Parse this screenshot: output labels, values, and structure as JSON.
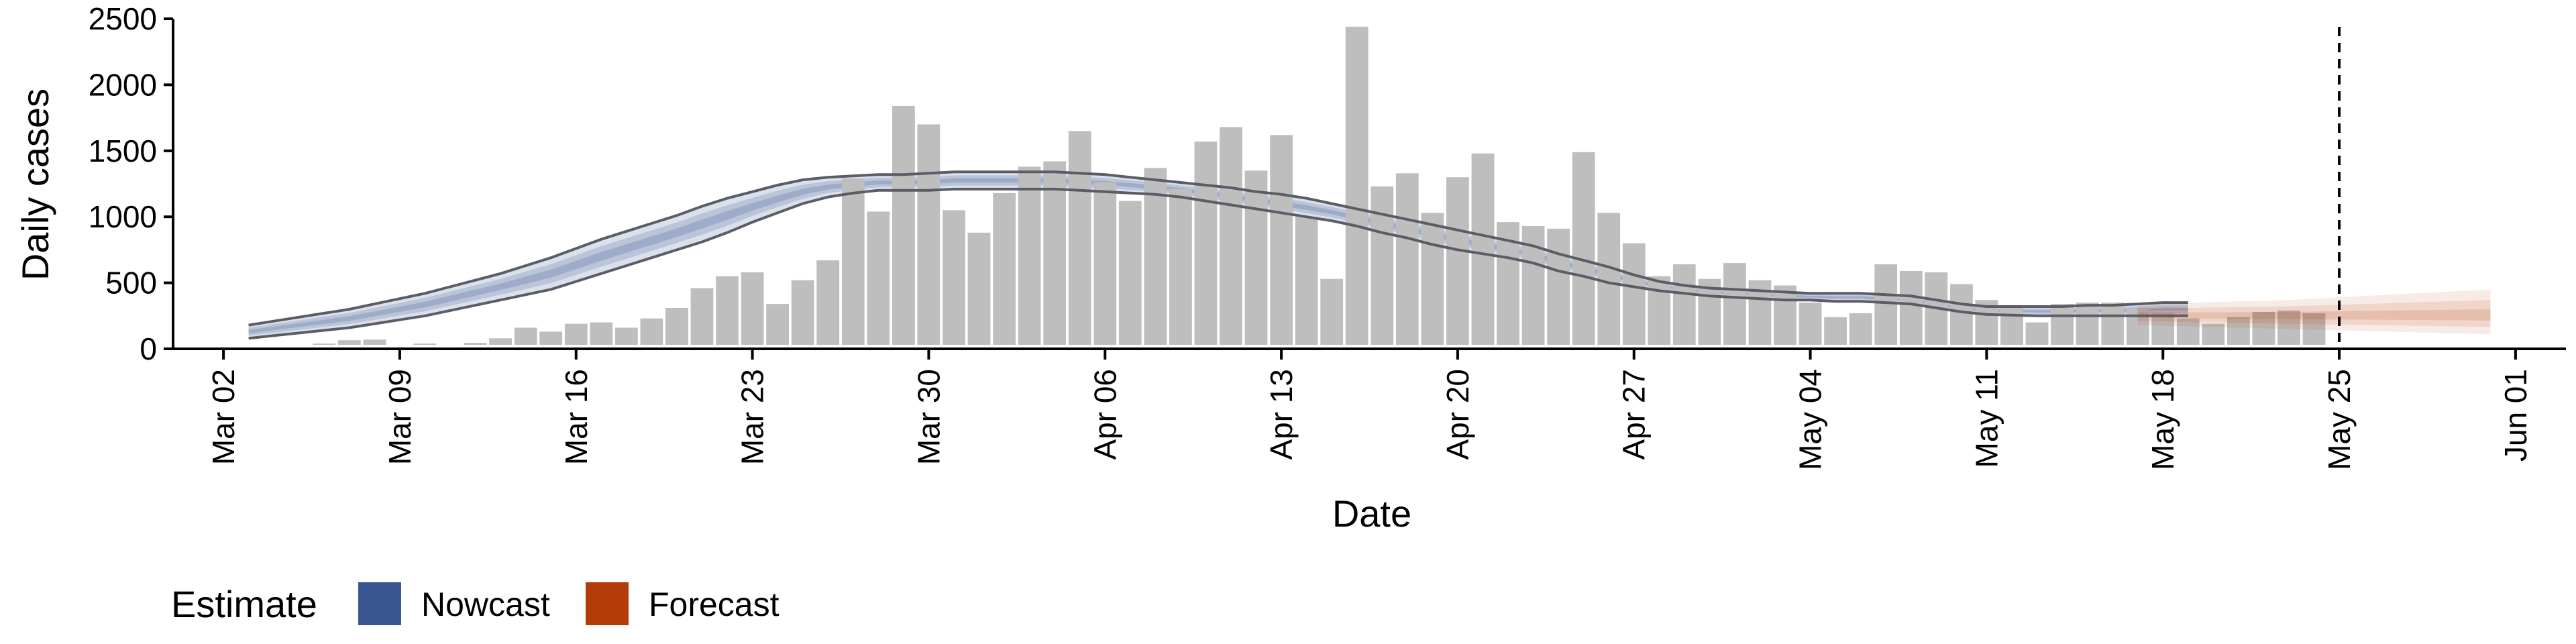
{
  "chart_data": {
    "type": "bar",
    "xlabel": "Date",
    "ylabel": "Daily cases",
    "ylim": [
      0,
      2500
    ],
    "yticks": [
      0,
      500,
      1000,
      1500,
      2000,
      2500
    ],
    "xlim": [
      "2020-02-29",
      "2020-06-03"
    ],
    "xticks": [
      {
        "date": "2020-03-02",
        "label": "Mar 02"
      },
      {
        "date": "2020-03-09",
        "label": "Mar 09"
      },
      {
        "date": "2020-03-16",
        "label": "Mar 16"
      },
      {
        "date": "2020-03-23",
        "label": "Mar 23"
      },
      {
        "date": "2020-03-30",
        "label": "Mar 30"
      },
      {
        "date": "2020-04-06",
        "label": "Apr 06"
      },
      {
        "date": "2020-04-13",
        "label": "Apr 13"
      },
      {
        "date": "2020-04-20",
        "label": "Apr 20"
      },
      {
        "date": "2020-04-27",
        "label": "Apr 27"
      },
      {
        "date": "2020-05-04",
        "label": "May 04"
      },
      {
        "date": "2020-05-11",
        "label": "May 11"
      },
      {
        "date": "2020-05-18",
        "label": "May 18"
      },
      {
        "date": "2020-05-25",
        "label": "May 25"
      },
      {
        "date": "2020-06-01",
        "label": "Jun 01"
      }
    ],
    "bar_color": "#bebebe",
    "bars": {
      "start": "2020-03-03",
      "values": [
        5,
        10,
        20,
        40,
        65,
        70,
        30,
        40,
        30,
        45,
        80,
        160,
        130,
        190,
        200,
        160,
        230,
        310,
        460,
        550,
        580,
        340,
        520,
        670,
        1290,
        1040,
        1840,
        1700,
        1050,
        880,
        1180,
        1380,
        1420,
        1650,
        1260,
        1120,
        1370,
        1210,
        1570,
        1680,
        1350,
        1620,
        1000,
        530,
        2440,
        1230,
        1330,
        1030,
        1300,
        1480,
        960,
        930,
        910,
        1490,
        1030,
        800,
        550,
        640,
        530,
        650,
        520,
        480,
        350,
        240,
        270,
        640,
        590,
        580,
        490,
        370,
        330,
        200,
        340,
        350,
        350,
        300,
        280,
        230,
        190,
        240,
        280,
        290,
        270
      ]
    },
    "nowcast": {
      "name": "Nowcast",
      "color": "#3a5691",
      "start": "2020-03-03",
      "outer_upper": [
        180,
        210,
        240,
        270,
        300,
        340,
        380,
        420,
        470,
        520,
        570,
        630,
        690,
        760,
        830,
        890,
        950,
        1010,
        1080,
        1140,
        1190,
        1240,
        1280,
        1300,
        1310,
        1320,
        1320,
        1330,
        1340,
        1340,
        1340,
        1340,
        1340,
        1330,
        1320,
        1300,
        1280,
        1260,
        1240,
        1220,
        1190,
        1170,
        1140,
        1100,
        1060,
        1020,
        980,
        940,
        900,
        860,
        820,
        780,
        720,
        670,
        620,
        560,
        510,
        480,
        460,
        450,
        440,
        430,
        420,
        420,
        420,
        410,
        400,
        370,
        340,
        320,
        320,
        320,
        320,
        330,
        330,
        340,
        350,
        350
      ],
      "outer_lower": [
        80,
        100,
        120,
        140,
        160,
        190,
        220,
        250,
        290,
        330,
        370,
        410,
        450,
        510,
        570,
        630,
        690,
        750,
        810,
        880,
        960,
        1030,
        1100,
        1150,
        1180,
        1200,
        1200,
        1200,
        1210,
        1210,
        1210,
        1210,
        1210,
        1200,
        1190,
        1180,
        1170,
        1150,
        1120,
        1090,
        1060,
        1030,
        1000,
        970,
        930,
        880,
        840,
        790,
        750,
        720,
        690,
        650,
        590,
        550,
        500,
        470,
        440,
        420,
        400,
        390,
        380,
        370,
        370,
        360,
        360,
        350,
        340,
        310,
        280,
        260,
        255,
        250,
        250,
        250,
        250,
        250,
        250,
        250
      ]
    },
    "forecast": {
      "name": "Forecast",
      "color": "#b33d08",
      "start": "2020-05-17",
      "outer_upper": [
        330,
        340,
        350,
        355,
        360,
        365,
        370,
        380,
        390,
        400,
        410,
        420,
        430,
        440,
        450
      ],
      "outer_lower": [
        180,
        175,
        170,
        165,
        160,
        155,
        150,
        145,
        140,
        135,
        130,
        125,
        120,
        115,
        110
      ],
      "center": [
        260,
        255,
        250,
        250,
        250,
        250,
        250,
        250,
        250,
        250,
        250,
        250,
        250,
        250,
        250
      ]
    },
    "vline_date": "2020-05-25",
    "legend": {
      "title": "Estimate",
      "position": "bottom-left",
      "entries": [
        {
          "label": "Nowcast",
          "color": "#3a5691"
        },
        {
          "label": "Forecast",
          "color": "#b33d08"
        }
      ]
    },
    "grid": false
  }
}
